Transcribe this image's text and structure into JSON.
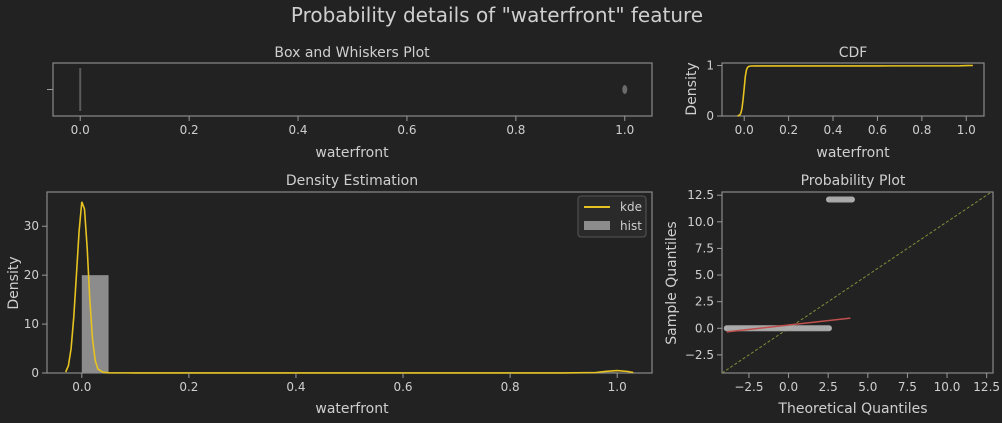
{
  "figure": {
    "title": "Probability details of \"waterfront\" feature",
    "background": "#222222",
    "text_color": "#cfcfcf",
    "frame_color": "#8a8a8a"
  },
  "chart_data": [
    {
      "id": "box",
      "type": "box",
      "title": "Box and Whiskers Plot",
      "xlabel": "waterfront",
      "ylabel": "",
      "xlim": [
        -0.05,
        1.05
      ],
      "xticks": [
        0.0,
        0.2,
        0.4,
        0.6,
        0.8,
        1.0
      ],
      "xtick_labels": [
        "0.0",
        "0.2",
        "0.4",
        "0.6",
        "0.8",
        "1.0"
      ],
      "box": {
        "q1": 0,
        "median": 0,
        "q3": 0,
        "whisker_low": 0,
        "whisker_high": 0
      },
      "outliers": [
        1.0
      ]
    },
    {
      "id": "cdf",
      "type": "line",
      "title": "CDF",
      "xlabel": "waterfront",
      "ylabel": "Density",
      "xlim": [
        -0.1,
        1.08
      ],
      "ylim": [
        0,
        1.05
      ],
      "xticks": [
        0.0,
        0.2,
        0.4,
        0.6,
        0.8,
        1.0
      ],
      "xtick_labels": [
        "0.0",
        "0.2",
        "0.4",
        "0.6",
        "0.8",
        "1.0"
      ],
      "yticks": [
        0,
        1
      ],
      "ytick_labels": [
        "0",
        "1"
      ],
      "color": "#e6c320",
      "x": [
        -0.03,
        -0.02,
        -0.015,
        -0.01,
        -0.005,
        0.0,
        0.005,
        0.01,
        0.015,
        0.02,
        0.03,
        0.05,
        0.2,
        0.6,
        0.97,
        1.0,
        1.03
      ],
      "y": [
        0.0,
        0.02,
        0.06,
        0.15,
        0.33,
        0.55,
        0.78,
        0.91,
        0.96,
        0.98,
        0.99,
        0.992,
        0.992,
        0.993,
        0.995,
        0.998,
        1.0
      ]
    },
    {
      "id": "density",
      "type": "histogram+kde",
      "title": "Density Estimation",
      "xlabel": "waterfront",
      "ylabel": "Density",
      "xlim": [
        -0.065,
        1.065
      ],
      "ylim": [
        0,
        37
      ],
      "xticks": [
        0.0,
        0.2,
        0.4,
        0.6,
        0.8,
        1.0
      ],
      "xtick_labels": [
        "0.0",
        "0.2",
        "0.4",
        "0.6",
        "0.8",
        "1.0"
      ],
      "yticks": [
        0,
        10,
        20,
        30
      ],
      "ytick_labels": [
        "0",
        "10",
        "20",
        "30"
      ],
      "legend": {
        "position": "top-right",
        "entries": [
          {
            "label": "kde",
            "color": "#e6c320",
            "kind": "line"
          },
          {
            "label": "hist",
            "color": "#8c8c8c",
            "kind": "patch"
          }
        ]
      },
      "hist": {
        "bins": [
          [
            0.0,
            0.05,
            20.0
          ],
          [
            0.95,
            1.0,
            0.15
          ]
        ],
        "color": "#8c8c8c"
      },
      "kde": {
        "color": "#e6c320",
        "x": [
          -0.03,
          -0.025,
          -0.02,
          -0.015,
          -0.01,
          -0.005,
          0.0,
          0.005,
          0.01,
          0.015,
          0.02,
          0.025,
          0.03,
          0.04,
          0.05,
          0.1,
          0.5,
          0.9,
          0.96,
          0.98,
          1.0,
          1.02,
          1.03
        ],
        "y": [
          0.2,
          1.5,
          5.0,
          11.5,
          20.0,
          29.0,
          35.0,
          33.5,
          25.5,
          15.0,
          7.0,
          2.6,
          0.8,
          0.15,
          0.05,
          0.03,
          0.03,
          0.03,
          0.1,
          0.35,
          0.5,
          0.3,
          0.1
        ]
      }
    },
    {
      "id": "probplot",
      "type": "scatter",
      "title": "Probability Plot",
      "xlabel": "Theoretical Quantiles",
      "ylabel": "Sample Quantiles",
      "xlim": [
        -4.2,
        12.9
      ],
      "ylim": [
        -4.2,
        12.8
      ],
      "xticks": [
        -2.5,
        0.0,
        2.5,
        5.0,
        7.5,
        10.0,
        12.5
      ],
      "xtick_labels": [
        "−2.5",
        "0.0",
        "2.5",
        "5.0",
        "7.5",
        "10.0",
        "12.5"
      ],
      "yticks": [
        -2.5,
        0.0,
        2.5,
        5.0,
        7.5,
        10.0,
        12.5
      ],
      "ytick_labels": [
        "−2.5",
        "0.0",
        "2.5",
        "5.0",
        "7.5",
        "10.0",
        "12.5"
      ],
      "point_color": "#c8c8c8",
      "clusters": [
        {
          "y": 0.0,
          "x_from": -3.9,
          "x_to": 2.55
        },
        {
          "y": 12.1,
          "x_from": 2.55,
          "x_to": 4.0
        }
      ],
      "fit_line": {
        "color": "#c0504d",
        "x": [
          -3.9,
          3.9
        ],
        "y": [
          -0.34,
          0.95
        ]
      },
      "identity_line": {
        "color": "#7f8f3a",
        "style": "dashed"
      }
    }
  ]
}
